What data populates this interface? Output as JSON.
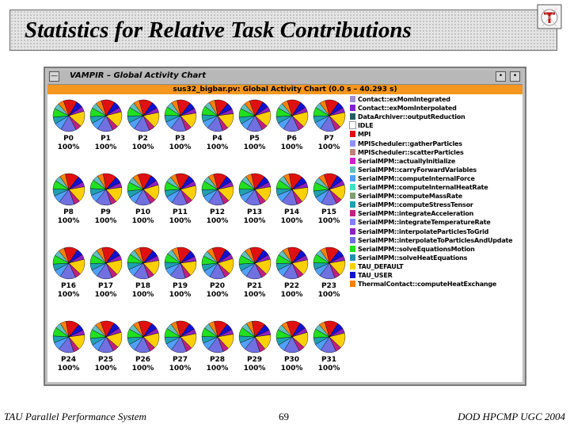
{
  "slide": {
    "title": "Statistics for Relative Task Contributions",
    "footer_left": "TAU Parallel Performance System",
    "page_number": "69",
    "footer_right": "DOD HPCMP UGC 2004"
  },
  "window": {
    "title": "VAMPIR – Global Activity Chart",
    "close_glyph": "—",
    "menu_glyph": "•",
    "minimize_glyph": "•"
  },
  "chart_data": {
    "type": "pie",
    "title": "sus32_bigbar.pv: Global Activity Chart (0.0 s – 40.293 s)",
    "processes": [
      "P0",
      "P1",
      "P2",
      "P3",
      "P4",
      "P5",
      "P6",
      "P7",
      "P8",
      "P9",
      "P10",
      "P11",
      "P12",
      "P13",
      "P14",
      "P15",
      "P16",
      "P17",
      "P18",
      "P19",
      "P20",
      "P21",
      "P22",
      "P23",
      "P24",
      "P25",
      "P26",
      "P27",
      "P28",
      "P29",
      "P30",
      "P31"
    ],
    "percent_label": "100%",
    "legend": [
      {
        "label": "Contact::exMomIntegrated",
        "color": "#a090d0"
      },
      {
        "label": "Contact::exMomInterpolated",
        "color": "#8020d0"
      },
      {
        "label": "DataArchiver::outputReduction",
        "color": "#206060"
      },
      {
        "label": "IDLE",
        "color": "#ffffff"
      },
      {
        "label": "MPI",
        "color": "#e01010"
      },
      {
        "label": "MPIScheduler::gatherParticles",
        "color": "#9090ff"
      },
      {
        "label": "MPIScheduler::scatterParticles",
        "color": "#c08080"
      },
      {
        "label": "SerialMPM::actuallyInitialize",
        "color": "#d020d0"
      },
      {
        "label": "SerialMPM::carryForwardVariables",
        "color": "#60c0c0"
      },
      {
        "label": "SerialMPM::computeInternalForce",
        "color": "#50a0ff"
      },
      {
        "label": "SerialMPM::computeInternalHeatRate",
        "color": "#40e0c0"
      },
      {
        "label": "SerialMPM::computeMassRate",
        "color": "#80a070"
      },
      {
        "label": "SerialMPM::computeStressTensor",
        "color": "#20a0b0"
      },
      {
        "label": "SerialMPM::integrateAcceleration",
        "color": "#c02080"
      },
      {
        "label": "SerialMPM::integrateTemperatureRate",
        "color": "#8080ff"
      },
      {
        "label": "SerialMPM::interpolateParticlesToGrid",
        "color": "#9020c0"
      },
      {
        "label": "SerialMPM::interpolateToParticlesAndUpdate",
        "color": "#7070e0"
      },
      {
        "label": "SerialMPM::solveEquationsMotion",
        "color": "#20e020"
      },
      {
        "label": "SerialMPM::solveHeatEquations",
        "color": "#2090b0"
      },
      {
        "label": "TAU_DEFAULT",
        "color": "#ffd000"
      },
      {
        "label": "TAU_USER",
        "color": "#1010d0"
      },
      {
        "label": "ThermalContact::computeHeatExchange",
        "color": "#ff8000"
      }
    ],
    "slices": [
      {
        "label": "MPI",
        "value": 14,
        "color": "#e01010"
      },
      {
        "label": "TAU_USER",
        "value": 7,
        "color": "#1010d0"
      },
      {
        "label": "SerialMPM::interpolateParticlesToGrid",
        "value": 5,
        "color": "#9020c0"
      },
      {
        "label": "TAU_DEFAULT",
        "value": 16,
        "color": "#ffd000"
      },
      {
        "label": "SerialMPM::integrateAcceleration",
        "value": 6,
        "color": "#c02080"
      },
      {
        "label": "SerialMPM::interpolateToParticlesAndUpdate",
        "value": 16,
        "color": "#7070e0"
      },
      {
        "label": "SerialMPM::computeInternalForce",
        "value": 8,
        "color": "#50a0ff"
      },
      {
        "label": "SerialMPM::computeStressTensor",
        "value": 7,
        "color": "#20a0b0"
      },
      {
        "label": "SerialMPM::solveEquationsMotion",
        "value": 9,
        "color": "#20e020"
      },
      {
        "label": "SerialMPM::carryForwardVariables",
        "value": 6,
        "color": "#60c0c0"
      },
      {
        "label": "ThermalContact::computeHeatExchange",
        "value": 6,
        "color": "#ff8000"
      }
    ]
  }
}
